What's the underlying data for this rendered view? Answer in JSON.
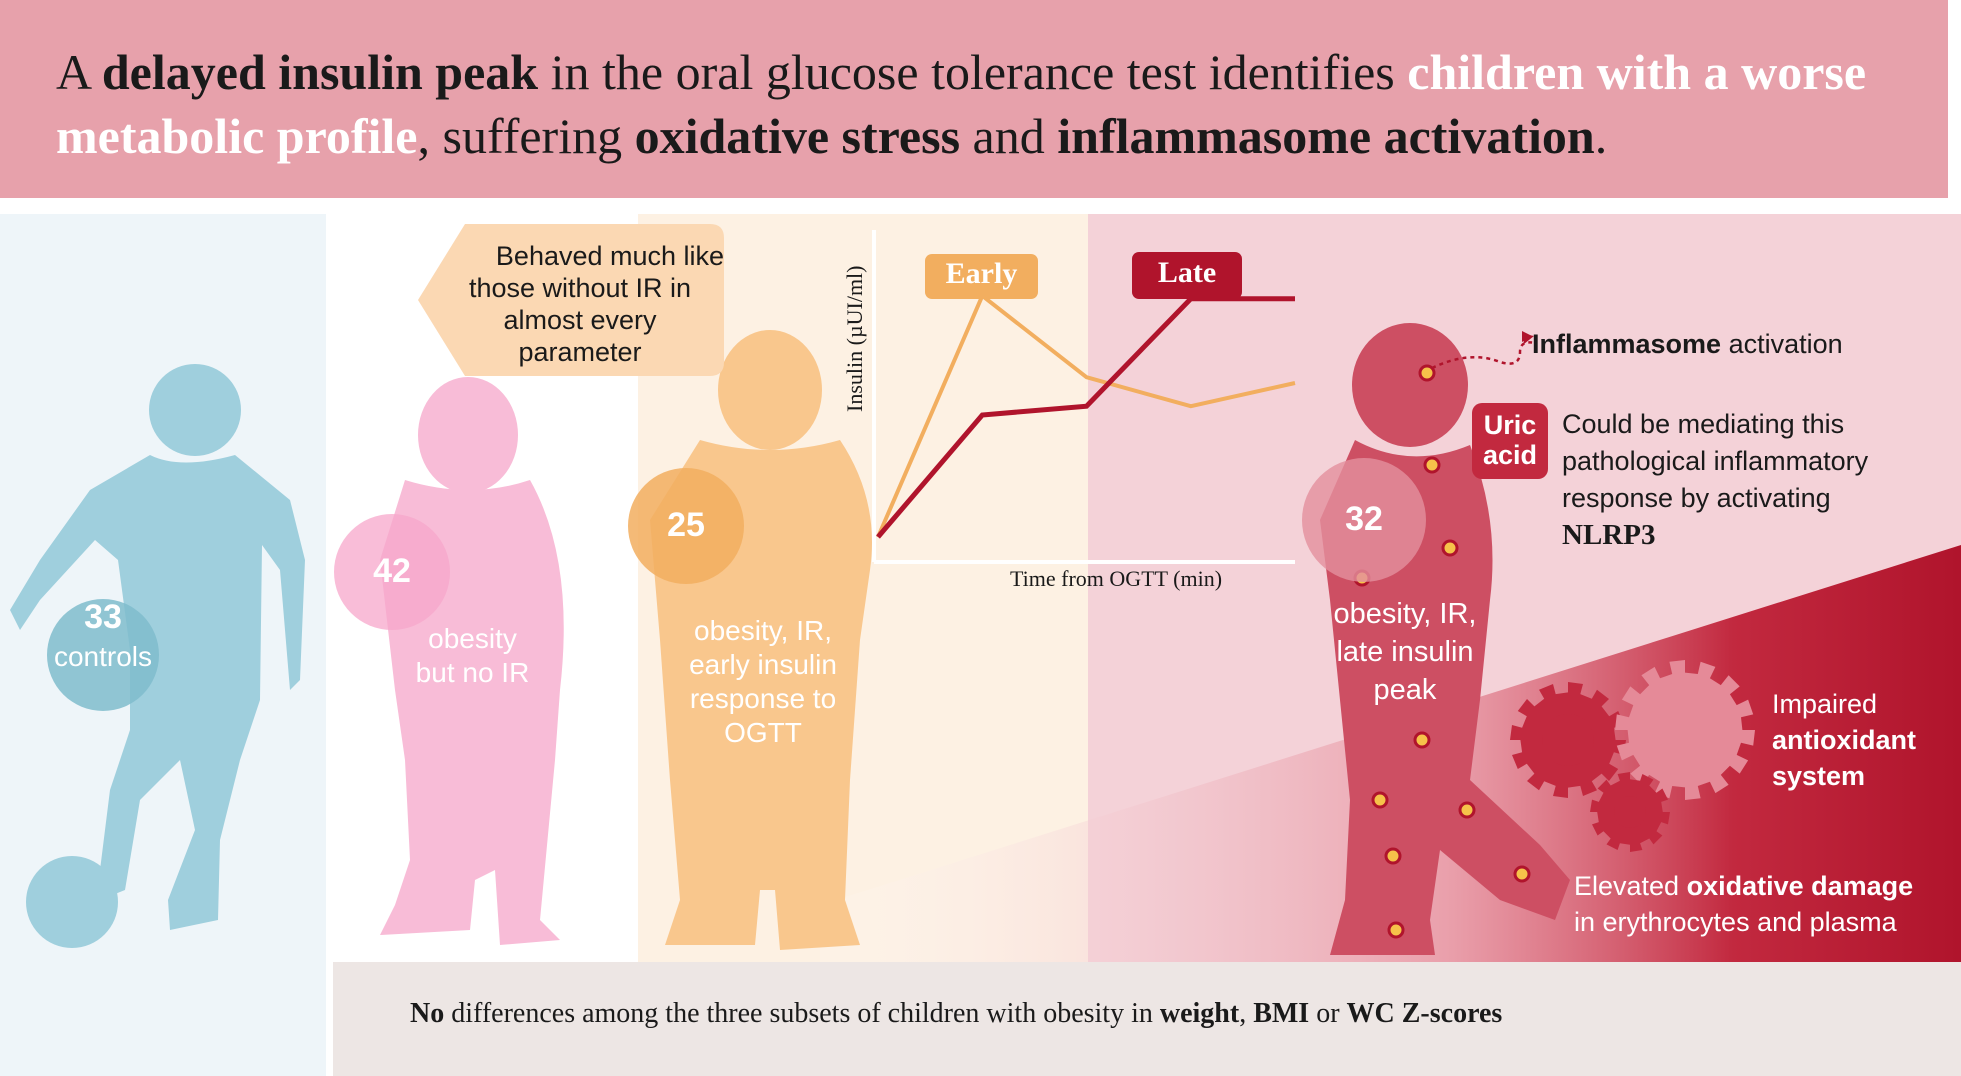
{
  "title": {
    "p1": "A ",
    "b1": "delayed insulin peak",
    "p2": " in the oral glucose tolerance test identifies ",
    "w1": "children with a worse metabolic profile",
    "p3": ", suffering ",
    "b2": "oxidative stress",
    "p4": " and ",
    "b3": "inflammasome activation",
    "p5": "."
  },
  "groups": {
    "controls": {
      "count": "33",
      "label": "controls"
    },
    "obesity_no_ir": {
      "count": "42",
      "label1": "obesity",
      "label2": "but no IR"
    },
    "early": {
      "count": "25",
      "label1": "obesity, IR,",
      "label2": "early insulin",
      "label3": "response to",
      "label4": "OGTT"
    },
    "late": {
      "count": "32",
      "label1": "obesity, IR,",
      "label2": "late insulin",
      "label3": "peak"
    }
  },
  "bubble": {
    "line1": "Behaved much like",
    "line2": "those without IR in",
    "line3": "almost every",
    "line4": "parameter"
  },
  "chart": {
    "early_tag": "Early",
    "late_tag": "Late",
    "ylabel": "Insulin (µUI/ml)",
    "xlabel": "Time from OGTT (min)"
  },
  "chart_data": {
    "type": "line",
    "title": "",
    "xlabel": "Time from OGTT (min)",
    "ylabel": "Insulin (µUI/ml)",
    "x": [
      0,
      1,
      2,
      3,
      4
    ],
    "series": [
      {
        "name": "Early",
        "values": [
          0,
          0.83,
          0.55,
          0.45,
          0.53
        ],
        "color": "#f2ae5f"
      },
      {
        "name": "Late",
        "values": [
          0,
          0.42,
          0.45,
          0.82,
          0.82
        ],
        "color": "#b0142c"
      }
    ],
    "ylim": [
      0,
      1
    ],
    "grid": false
  },
  "findings": {
    "inflammasome_bold": "Inflammasome",
    "inflammasome_rest": " activation",
    "uric_line1": "Uric",
    "uric_line2": "acid",
    "mediating1": "Could be mediating this",
    "mediating2": "pathological inflammatory",
    "mediating3": "response by activating",
    "nlrp3": "NLRP3",
    "impaired1": "Impaired",
    "impaired2": "antioxidant",
    "impaired3": "system",
    "elevated_p1": "Elevated ",
    "elevated_b": "oxidative damage",
    "elevated_p2": "in erythrocytes and plasma"
  },
  "footer": {
    "b1": "No",
    "p1": " differences among the three subsets of children with obesity in ",
    "b2": "weight",
    "p2": ", ",
    "b3": "BMI",
    "p3": " or ",
    "b4": "WC Z-scores"
  },
  "colors": {
    "banner": "#e7a1ab",
    "controls": "#9fcfdd",
    "obesity_no_ir": "#f8bcd7",
    "early": "#f9c78d",
    "late": "#cd4f63",
    "dark_red": "#b0142c"
  }
}
